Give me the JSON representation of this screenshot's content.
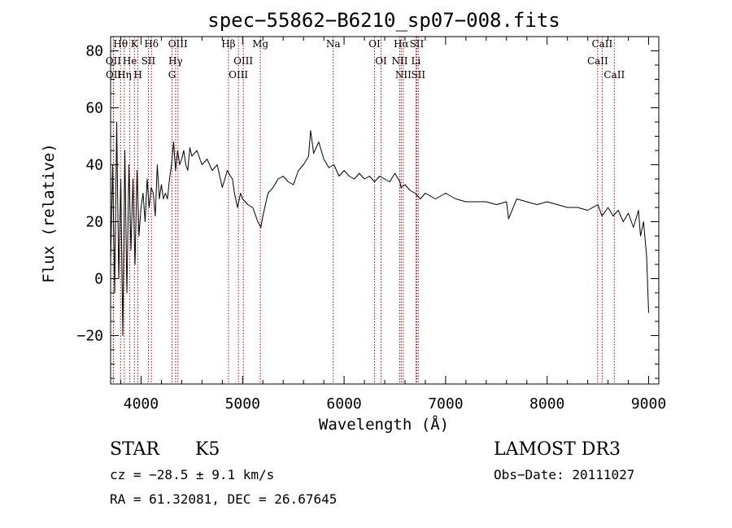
{
  "chart_data": {
    "type": "line",
    "title": "spec−55862−B6210_sp07−008.fits",
    "xlabel": "Wavelength (Å)",
    "ylabel": "Flux (relative)",
    "xlim": [
      3700,
      9100
    ],
    "ylim": [
      -37,
      85
    ],
    "xticks": [
      4000,
      5000,
      6000,
      7000,
      8000,
      9000
    ],
    "xtick_labels": [
      "4000",
      "5000",
      "6000",
      "7000",
      "8000",
      "9000"
    ],
    "yticks": [
      -20,
      0,
      20,
      40,
      60,
      80
    ],
    "ytick_labels": [
      "−20",
      "0",
      "20",
      "40",
      "60",
      "80"
    ],
    "grid": false,
    "series": [
      {
        "name": "flux",
        "x": [
          3700,
          3720,
          3740,
          3760,
          3780,
          3800,
          3820,
          3840,
          3860,
          3880,
          3900,
          3920,
          3940,
          3960,
          3980,
          4000,
          4020,
          4040,
          4060,
          4080,
          4100,
          4120,
          4140,
          4160,
          4180,
          4200,
          4220,
          4240,
          4260,
          4280,
          4300,
          4320,
          4340,
          4360,
          4380,
          4400,
          4420,
          4440,
          4460,
          4480,
          4500,
          4550,
          4600,
          4650,
          4700,
          4750,
          4800,
          4850,
          4880,
          4900,
          4920,
          4950,
          4980,
          5000,
          5050,
          5100,
          5150,
          5180,
          5200,
          5250,
          5300,
          5350,
          5400,
          5450,
          5500,
          5550,
          5600,
          5650,
          5670,
          5700,
          5750,
          5800,
          5850,
          5900,
          5950,
          6000,
          6050,
          6100,
          6150,
          6200,
          6250,
          6300,
          6350,
          6400,
          6450,
          6500,
          6550,
          6560,
          6600,
          6650,
          6700,
          6750,
          6800,
          6850,
          6900,
          6950,
          7000,
          7100,
          7200,
          7300,
          7400,
          7500,
          7600,
          7620,
          7700,
          7800,
          7900,
          8000,
          8100,
          8200,
          8300,
          8400,
          8500,
          8540,
          8600,
          8650,
          8700,
          8750,
          8800,
          8850,
          8900,
          8920,
          8950,
          8960,
          8980,
          9000
        ],
        "values": [
          5,
          40,
          -5,
          55,
          0,
          35,
          -20,
          45,
          -5,
          40,
          10,
          35,
          5,
          38,
          15,
          25,
          30,
          20,
          35,
          25,
          32,
          30,
          22,
          40,
          28,
          33,
          28,
          30,
          28,
          35,
          40,
          48,
          38,
          45,
          40,
          42,
          45,
          40,
          38,
          46,
          43,
          45,
          40,
          42,
          38,
          40,
          32,
          38,
          36,
          35,
          30,
          25,
          30,
          28,
          26,
          25,
          20,
          18,
          22,
          30,
          32,
          35,
          36,
          34,
          33,
          38,
          40,
          43,
          52,
          44,
          48,
          42,
          39,
          40,
          36,
          38,
          36,
          35,
          37,
          35,
          36,
          34,
          36,
          35,
          34,
          37,
          34,
          32,
          33,
          31,
          30,
          28,
          30,
          29,
          28,
          29,
          30,
          28,
          27,
          27,
          27,
          26,
          27,
          21,
          28,
          27,
          26,
          27,
          26,
          25,
          25,
          24,
          26,
          22,
          25,
          22,
          24,
          20,
          23,
          18,
          24,
          15,
          20,
          16,
          8,
          -12
        ]
      }
    ],
    "line_markers": [
      {
        "label": "Hθ",
        "x": 3798
      },
      {
        "label": "OII",
        "x": 3727
      },
      {
        "label": "OII",
        "x": 3729
      },
      {
        "label": "K",
        "x": 3934
      },
      {
        "label": "Hη",
        "x": 3835
      },
      {
        "label": "He",
        "x": 3889
      },
      {
        "label": "H",
        "x": 3969
      },
      {
        "label": "Hδ",
        "x": 4102
      },
      {
        "label": "SII",
        "x": 4072
      },
      {
        "label": "OIII",
        "x": 4363
      },
      {
        "label": "Hγ",
        "x": 4340
      },
      {
        "label": "G",
        "x": 4305
      },
      {
        "label": "Hβ",
        "x": 4861
      },
      {
        "label": "OIII",
        "x": 5007
      },
      {
        "label": "OIII",
        "x": 4959
      },
      {
        "label": "Mg",
        "x": 5175
      },
      {
        "label": "Na",
        "x": 5893
      },
      {
        "label": "OI",
        "x": 6300
      },
      {
        "label": "OI",
        "x": 6364
      },
      {
        "label": "Hα",
        "x": 6563
      },
      {
        "label": "NII",
        "x": 6548
      },
      {
        "label": "NII",
        "x": 6583
      },
      {
        "label": "SII",
        "x": 6716
      },
      {
        "label": "Li",
        "x": 6708
      },
      {
        "label": "SII",
        "x": 6731
      },
      {
        "label": "CaII",
        "x": 8542
      },
      {
        "label": "CaII",
        "x": 8498
      },
      {
        "label": "CaII",
        "x": 8662
      }
    ]
  },
  "info": {
    "class": "STAR",
    "subclass": "K5",
    "survey": "LAMOST DR3",
    "cz": "cz = −28.5 ± 9.1 km/s",
    "obs_date": "Obs−Date: 20111027",
    "coords": "RA =  61.32081, DEC =  26.67645"
  },
  "colors": {
    "line_marker": "#c00000",
    "spectrum": "#000000"
  }
}
